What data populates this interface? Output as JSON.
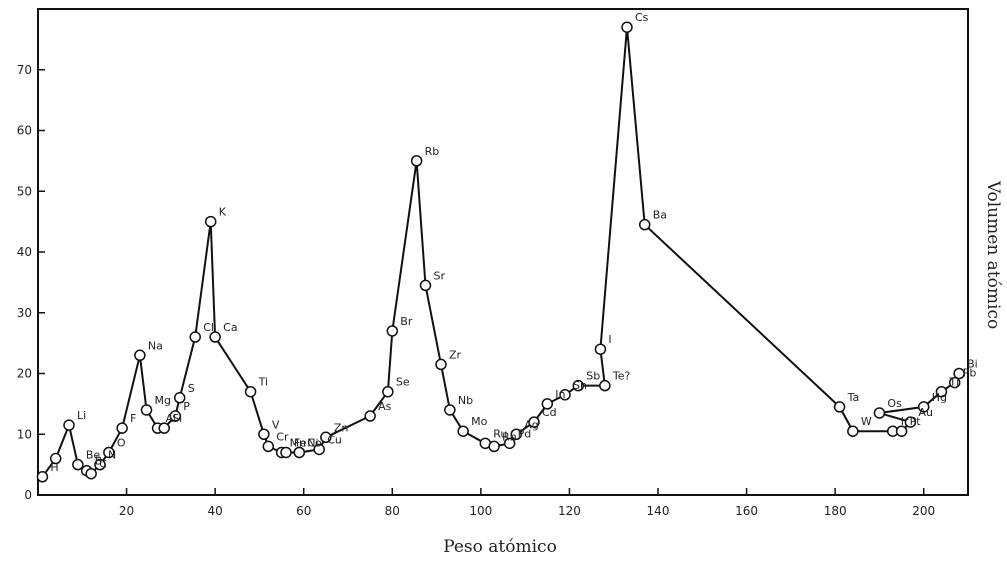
{
  "chart_data": {
    "type": "line",
    "xlabel": "Peso atómico",
    "ylabel": "Volumen atómico",
    "xlim": [
      0,
      210
    ],
    "ylim": [
      0,
      80
    ],
    "x_ticks": [
      20,
      40,
      60,
      80,
      100,
      120,
      140,
      160,
      180,
      200
    ],
    "y_ticks": [
      0,
      10,
      20,
      30,
      40,
      50,
      60,
      70
    ],
    "y_tick_labels": [
      "0",
      "10",
      "20",
      "30",
      "40",
      "50",
      "60",
      "70"
    ],
    "grid": false,
    "series": [
      {
        "points": [
          {
            "label": "H",
            "x": 1,
            "y": 3
          },
          {
            "label": "",
            "x": 4,
            "y": 6
          },
          {
            "label": "Li",
            "x": 7,
            "y": 11.5
          },
          {
            "label": "Be",
            "x": 9,
            "y": 5
          },
          {
            "label": "B",
            "x": 11,
            "y": 4
          },
          {
            "label": "C",
            "x": 12,
            "y": 3.5
          },
          {
            "label": "N",
            "x": 14,
            "y": 5
          },
          {
            "label": "O",
            "x": 16,
            "y": 7
          },
          {
            "label": "F",
            "x": 19,
            "y": 11
          },
          {
            "label": "Na",
            "x": 23,
            "y": 23
          },
          {
            "label": "Mg",
            "x": 24.5,
            "y": 14
          },
          {
            "label": "Al",
            "x": 27,
            "y": 11
          },
          {
            "label": "Si",
            "x": 28.5,
            "y": 11
          },
          {
            "label": "P",
            "x": 31,
            "y": 13
          },
          {
            "label": "S",
            "x": 32,
            "y": 16
          },
          {
            "label": "Cl",
            "x": 35.5,
            "y": 26
          },
          {
            "label": "K",
            "x": 39,
            "y": 45
          },
          {
            "label": "Ca",
            "x": 40,
            "y": 26
          },
          {
            "label": "Ti",
            "x": 48,
            "y": 17
          },
          {
            "label": "V",
            "x": 51,
            "y": 10
          },
          {
            "label": "Cr",
            "x": 52,
            "y": 8
          },
          {
            "label": "Mn",
            "x": 55,
            "y": 7
          },
          {
            "label": "Fe",
            "x": 56,
            "y": 7
          },
          {
            "label": "Co",
            "x": 59,
            "y": 7
          },
          {
            "label": "Ni",
            "x": 59,
            "y": 7
          },
          {
            "label": "Cu",
            "x": 63.5,
            "y": 7.5
          },
          {
            "label": "Zn",
            "x": 65,
            "y": 9.5
          },
          {
            "label": "As",
            "x": 75,
            "y": 13
          },
          {
            "label": "Se",
            "x": 79,
            "y": 17
          },
          {
            "label": "Br",
            "x": 80,
            "y": 27
          },
          {
            "label": "Rb",
            "x": 85.5,
            "y": 55
          },
          {
            "label": "Sr",
            "x": 87.5,
            "y": 34.5
          },
          {
            "label": "Zr",
            "x": 91,
            "y": 21.5
          },
          {
            "label": "Nb",
            "x": 93,
            "y": 14
          },
          {
            "label": "Mo",
            "x": 96,
            "y": 10.5
          },
          {
            "label": "Ru",
            "x": 101,
            "y": 8.5
          },
          {
            "label": "Rh",
            "x": 103,
            "y": 8
          },
          {
            "label": "Pd",
            "x": 106.5,
            "y": 8.5
          },
          {
            "label": "Ag",
            "x": 108,
            "y": 10
          },
          {
            "label": "Cd",
            "x": 112,
            "y": 12
          },
          {
            "label": "In",
            "x": 115,
            "y": 15
          },
          {
            "label": "Sn",
            "x": 119,
            "y": 16.5
          },
          {
            "label": "Sb",
            "x": 122,
            "y": 18
          },
          {
            "label": "Te?",
            "x": 128,
            "y": 18
          },
          {
            "label": "I",
            "x": 127,
            "y": 24
          },
          {
            "label": "Cs",
            "x": 133,
            "y": 77
          },
          {
            "label": "Ba",
            "x": 137,
            "y": 44.5
          },
          {
            "label": "Ta",
            "x": 181,
            "y": 14.5
          },
          {
            "label": "W",
            "x": 184,
            "y": 10.5
          },
          {
            "label": "Ir",
            "x": 193,
            "y": 10.5
          },
          {
            "label": "Pt",
            "x": 195,
            "y": 10.5
          },
          {
            "label": "Au",
            "x": 197,
            "y": 12
          },
          {
            "label": "Os",
            "x": 190,
            "y": 13.5
          },
          {
            "label": "Hg",
            "x": 200,
            "y": 14.5
          },
          {
            "label": "Tl",
            "x": 204,
            "y": 17
          },
          {
            "label": "Pb",
            "x": 207,
            "y": 18.5
          },
          {
            "label": "Bi",
            "x": 208,
            "y": 20
          }
        ]
      }
    ]
  }
}
